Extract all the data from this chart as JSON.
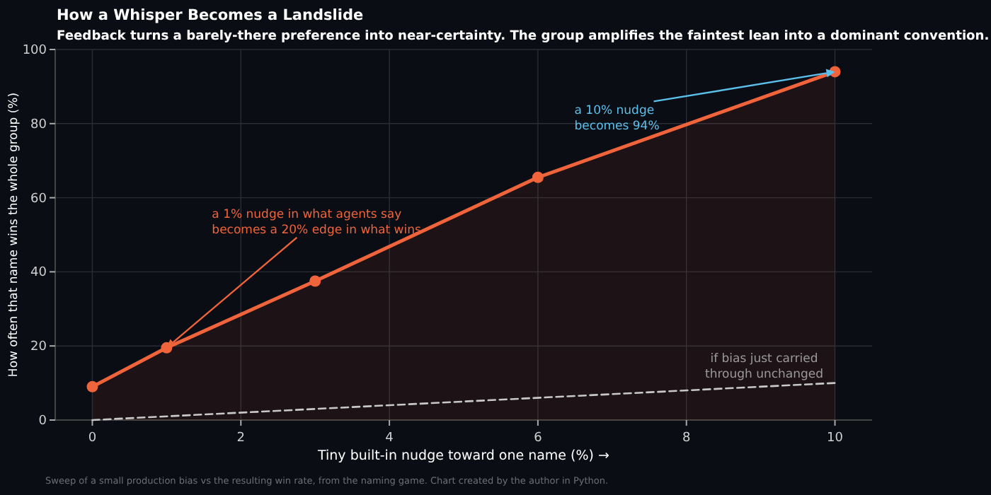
{
  "chart_data": {
    "type": "line",
    "title": "How a Whisper Becomes a Landslide",
    "subtitle": "Feedback turns a barely-there preference into near-certainty. The group amplifies the faintest lean into a dominant convention.",
    "xlabel": "Tiny built-in nudge toward one name (%) →",
    "ylabel": "How often that name wins the whole group (%)",
    "xlim": [
      -0.5,
      10.5
    ],
    "xticks": [
      0,
      2,
      4,
      6,
      8,
      10
    ],
    "ylim": [
      0,
      100
    ],
    "yticks": [
      0,
      20,
      40,
      60,
      80,
      100
    ],
    "grid": true,
    "series": [
      {
        "type": "area",
        "color": "#f0643c",
        "marker": "circle",
        "x": [
          0,
          1,
          3,
          6,
          10
        ],
        "values": [
          9,
          19.5,
          37.5,
          65.5,
          94
        ]
      },
      {
        "type": "line",
        "color": "#c8c8c8",
        "marker": "none",
        "line_style": "dashed",
        "x": [
          0,
          10
        ],
        "values": [
          0,
          10
        ]
      }
    ],
    "annotations": [
      {
        "text": "a 1% nudge in what agents say\nbecomes a 20% edge in what wins",
        "x": 1,
        "y": 19.5
      },
      {
        "text": "a 10% nudge\nbecomes 94%",
        "x": 10,
        "y": 94
      },
      "if bias just carried\nthrough unchanged",
      "Sweep of a small production bias vs the resulting win rate, from the naming game. Chart created by the author in Python."
    ]
  }
}
